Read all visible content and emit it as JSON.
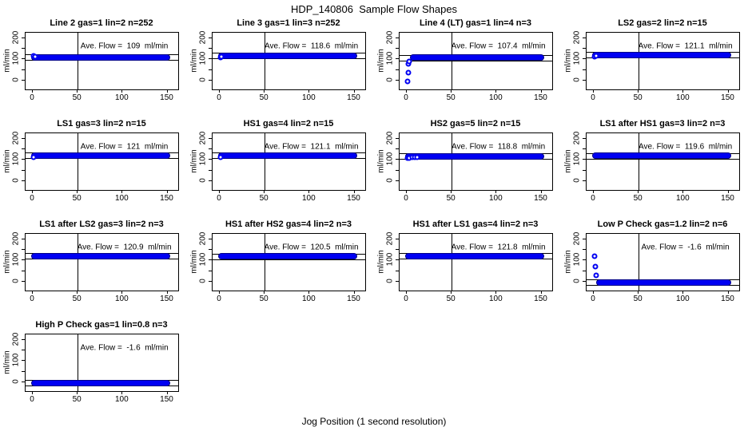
{
  "title": "HDP_140806  Sample Flow Shapes",
  "xlabel": "Jog Position (1 second resolution)",
  "colors": {
    "data_blue": "#0000f2",
    "data_edge": "#000088",
    "axis_black": "#000000",
    "background": "#ffffff"
  },
  "chart_data": {
    "type": "scatter",
    "title": "HDP_140806  Sample Flow Shapes",
    "xlabel": "Jog Position (1 second resolution)",
    "ylabel": "ml/min",
    "x_ticks": [
      0,
      50,
      100,
      150
    ],
    "y_ticks_labeled": [
      0,
      100,
      200
    ],
    "y_ticks_minor": [
      50,
      150
    ],
    "xlim": [
      -8,
      162
    ],
    "ylim": [
      -40,
      225
    ],
    "vline_x": 50,
    "ref_line_offset": 13,
    "annotation_center": {
      "x": 102,
      "y": 160
    },
    "panels": [
      {
        "title": "Line 2 gas=1 lin=2 n=252",
        "ave_flow": 109,
        "annotation": "Ave. Flow =  109  ml/min",
        "band": {
          "x0": -2,
          "x1": 153,
          "y": 110
        },
        "points": [
          [
            1,
            116
          ],
          [
            2.5,
            113
          ]
        ]
      },
      {
        "title": "Line 3 gas=1 lin=3 n=252",
        "ave_flow": 118.6,
        "annotation": "Ave. Flow =  118.6  ml/min",
        "band": {
          "x0": -2,
          "x1": 153,
          "y": 118
        },
        "points": [
          [
            1,
            110
          ],
          [
            2,
            113
          ]
        ]
      },
      {
        "title": "Line 4 (LT) gas=1 lin=4 n=3",
        "ave_flow": 107.4,
        "annotation": "Ave. Flow =  107.4  ml/min",
        "band": {
          "x0": 4,
          "x1": 153,
          "y": 108
        },
        "points": [
          [
            1,
            -2
          ],
          [
            1.6,
            40
          ],
          [
            2.2,
            80
          ],
          [
            2.6,
            91
          ]
        ]
      },
      {
        "title": "LS2 gas=2 lin=2 n=15",
        "ave_flow": 121.1,
        "annotation": "Ave. Flow =  121.1  ml/min",
        "band": {
          "x0": -2,
          "x1": 153,
          "y": 121
        },
        "points": [
          [
            1,
            112
          ],
          [
            2.5,
            116
          ]
        ]
      },
      {
        "title": "LS1 gas=3 lin=2 n=15",
        "ave_flow": 121,
        "annotation": "Ave. Flow =  121  ml/min",
        "band": {
          "x0": -2,
          "x1": 153,
          "y": 121
        },
        "points": [
          [
            1,
            113
          ]
        ]
      },
      {
        "title": "HS1 gas=4 lin=2 n=15",
        "ave_flow": 121.1,
        "annotation": "Ave. Flow =  121.1  ml/min",
        "band": {
          "x0": -2,
          "x1": 153,
          "y": 121
        },
        "points": [
          [
            1,
            113
          ]
        ]
      },
      {
        "title": "HS2 gas=5 lin=2 n=15",
        "ave_flow": 118.8,
        "annotation": "Ave. Flow =  118.8  ml/min",
        "band": {
          "x0": -2,
          "x1": 153,
          "y": 118
        },
        "points": [
          [
            1,
            109
          ],
          [
            3,
            111
          ],
          [
            6,
            112
          ],
          [
            9,
            112
          ],
          [
            12,
            113
          ]
        ]
      },
      {
        "title": "LS1 after HS1 gas=3 lin=2 n=3",
        "ave_flow": 119.6,
        "annotation": "Ave. Flow =  119.6  ml/min",
        "band": {
          "x0": -2,
          "x1": 153,
          "y": 120
        },
        "points": []
      },
      {
        "title": "LS1 after LS2 gas=3 lin=2 n=3",
        "ave_flow": 120.9,
        "annotation": "Ave. Flow =  120.9  ml/min",
        "band": {
          "x0": -2,
          "x1": 153,
          "y": 121
        },
        "points": []
      },
      {
        "title": "HS1 after HS2 gas=4 lin=2 n=3",
        "ave_flow": 120.5,
        "annotation": "Ave. Flow =  120.5  ml/min",
        "band": {
          "x0": -2,
          "x1": 153,
          "y": 120
        },
        "points": []
      },
      {
        "title": "HS1 after LS1 gas=4 lin=2 n=3",
        "ave_flow": 121.8,
        "annotation": "Ave. Flow =  121.8  ml/min",
        "band": {
          "x0": -2,
          "x1": 153,
          "y": 122
        },
        "points": []
      },
      {
        "title": "Low P Check gas=1.2 lin=2 n=6",
        "ave_flow": -1.6,
        "annotation": "Ave. Flow =  -1.6  ml/min",
        "band": {
          "x0": 3,
          "x1": 153,
          "y": -2
        },
        "points": [
          [
            1,
            120
          ],
          [
            2,
            73
          ],
          [
            3,
            30
          ]
        ]
      },
      {
        "title": "High P Check gas=1 lin=0.8 n=3",
        "ave_flow": -1.6,
        "annotation": "Ave. Flow =  -1.6  ml/min",
        "band": {
          "x0": -2,
          "x1": 153,
          "y": -2
        },
        "points": []
      }
    ]
  }
}
